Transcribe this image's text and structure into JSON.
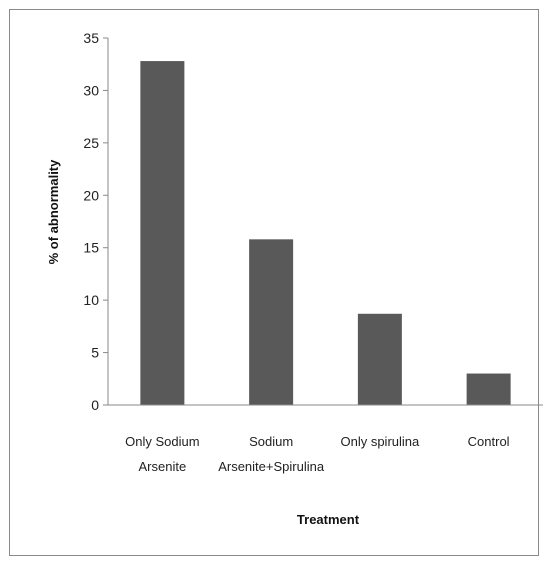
{
  "chart_data": {
    "type": "bar",
    "categories": [
      [
        "Only Sodium",
        "Arsenite"
      ],
      [
        "Sodium",
        "Arsenite+Spirulina"
      ],
      [
        "Only spirulina"
      ],
      [
        "Control"
      ]
    ],
    "values": [
      32.8,
      15.8,
      8.7,
      3.0
    ],
    "xlabel": "Treatment",
    "ylabel": "% of abnormality",
    "ylim": [
      0,
      35
    ],
    "yticks": [
      0,
      5,
      10,
      15,
      20,
      25,
      30,
      35
    ],
    "grid": false,
    "legend": "none",
    "bar_color": "#595959"
  }
}
